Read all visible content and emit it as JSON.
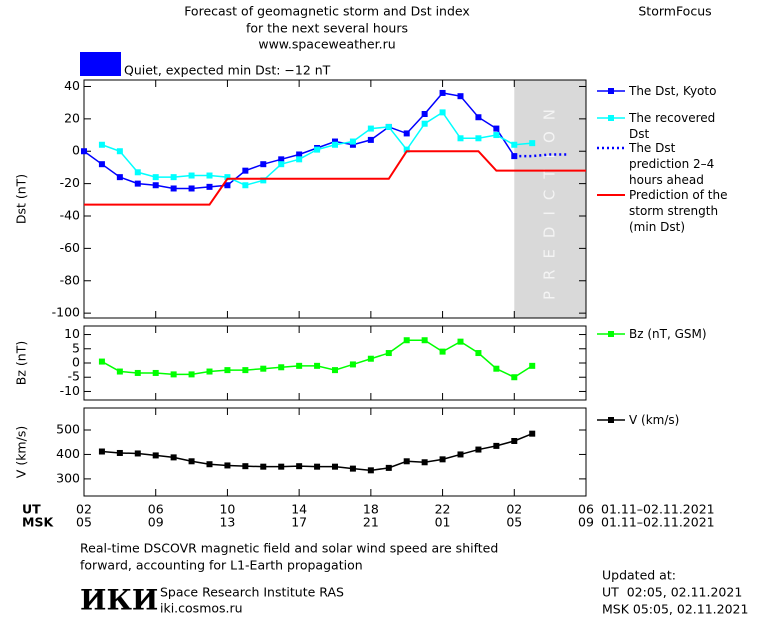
{
  "header": {
    "title": [
      "Forecast of geomagnetic storm and Dst index",
      "for the next several hours",
      "www.spaceweather.ru"
    ],
    "brand": "StormFocus",
    "status": "Quiet, expected min Dst: −12 nT",
    "status_color": "#0000ff"
  },
  "chart_data": [
    {
      "type": "line",
      "ylabel": "Dst (nT)",
      "xlim": [
        0,
        28
      ],
      "ylim": [
        -103,
        44
      ],
      "yticks": [
        40,
        20,
        0,
        -20,
        -40,
        -60,
        -80,
        -100
      ],
      "shaded_region": {
        "x": [
          24,
          28
        ],
        "label": "PREDICTION",
        "color": "#d9d9d9"
      },
      "series": [
        {
          "name": "The Dst, Kyoto",
          "color": "#0000ff",
          "marker": true,
          "x": [
            0,
            1,
            2,
            3,
            4,
            5,
            6,
            7,
            8,
            9,
            10,
            11,
            12,
            13,
            14,
            15,
            16,
            17,
            18,
            19,
            20,
            21,
            22,
            23,
            24
          ],
          "values": [
            0,
            -8,
            -16,
            -20,
            -21,
            -23,
            -23,
            -22,
            -21,
            -12,
            -8,
            -5,
            -2,
            2,
            6,
            4,
            7,
            15,
            11,
            23,
            36,
            34,
            21,
            14,
            -3
          ]
        },
        {
          "name": "The recovered Dst",
          "color": "#00ffff",
          "marker": true,
          "x": [
            1,
            2,
            3,
            4,
            5,
            6,
            7,
            8,
            9,
            10,
            11,
            12,
            13,
            14,
            15,
            16,
            17,
            18,
            19,
            20,
            21,
            22,
            23,
            24,
            25
          ],
          "values": [
            4,
            0,
            -13,
            -16,
            -16,
            -15,
            -15,
            -16,
            -21,
            -18,
            -8,
            -5,
            1,
            4,
            6,
            14,
            15,
            1,
            17,
            24,
            8,
            8,
            10,
            4,
            5
          ]
        },
        {
          "name": "The Dst prediction 2–4 hours ahead",
          "color": "#0000ff",
          "dash": "dotted",
          "marker": false,
          "x": [
            24,
            25,
            26,
            27
          ],
          "values": [
            -3,
            -3,
            -2,
            -2
          ]
        },
        {
          "name": "Prediction of the storm strength (min Dst)",
          "color": "#ff0000",
          "marker": false,
          "x": [
            0,
            7,
            8,
            17,
            18,
            22,
            23,
            28
          ],
          "values": [
            -33,
            -33,
            -17,
            -17,
            0,
            0,
            -12,
            -12
          ]
        }
      ]
    },
    {
      "type": "line",
      "ylabel": "Bz (nT)",
      "xlim": [
        0,
        28
      ],
      "ylim": [
        -13,
        13
      ],
      "yticks": [
        10,
        5,
        0,
        -5,
        -10
      ],
      "series": [
        {
          "name": "Bz (nT, GSM)",
          "color": "#00ff00",
          "marker": true,
          "x": [
            1,
            2,
            3,
            4,
            5,
            6,
            7,
            8,
            9,
            10,
            11,
            12,
            13,
            14,
            15,
            16,
            17,
            18,
            19,
            20,
            21,
            22,
            23,
            24,
            25
          ],
          "values": [
            0.5,
            -3,
            -3.5,
            -3.5,
            -4,
            -4,
            -3,
            -2.5,
            -2.5,
            -2,
            -1.5,
            -1,
            -1,
            -2.5,
            -0.5,
            1.5,
            3.5,
            8,
            8,
            4,
            7.5,
            3.5,
            -2,
            -5,
            -1
          ]
        }
      ]
    },
    {
      "type": "line",
      "ylabel": "V (km/s)",
      "xlim": [
        0,
        28
      ],
      "ylim": [
        230,
        590
      ],
      "yticks": [
        500,
        400,
        300
      ],
      "series": [
        {
          "name": "V (km/s)",
          "color": "#000000",
          "marker": true,
          "x": [
            1,
            2,
            3,
            4,
            5,
            6,
            7,
            8,
            9,
            10,
            11,
            12,
            13,
            14,
            15,
            16,
            17,
            18,
            19,
            20,
            21,
            22,
            23,
            24,
            25
          ],
          "values": [
            412,
            406,
            404,
            396,
            388,
            372,
            360,
            355,
            352,
            350,
            350,
            352,
            350,
            350,
            342,
            335,
            345,
            372,
            368,
            380,
            400,
            420,
            435,
            455,
            485
          ]
        }
      ],
      "xlabel": "UT",
      "xticks": [
        {
          "value": 0,
          "label": "02"
        },
        {
          "value": 4,
          "label": "06"
        },
        {
          "value": 8,
          "label": "10"
        },
        {
          "value": 12,
          "label": "14"
        },
        {
          "value": 16,
          "label": "18"
        },
        {
          "value": 20,
          "label": "22"
        },
        {
          "value": 24,
          "label": "02"
        },
        {
          "value": 28,
          "label": "06"
        }
      ],
      "date_range": "01.11–02.11.2021",
      "xlabel2": "MSK",
      "xticks2": [
        {
          "value": 0,
          "label": "05"
        },
        {
          "value": 4,
          "label": "09"
        },
        {
          "value": 8,
          "label": "13"
        },
        {
          "value": 12,
          "label": "17"
        },
        {
          "value": 16,
          "label": "21"
        },
        {
          "value": 20,
          "label": "01"
        },
        {
          "value": 24,
          "label": "05"
        },
        {
          "value": 28,
          "label": "09"
        }
      ],
      "date_range2": "01.11–02.11.2021"
    }
  ],
  "footer": {
    "note": [
      "Real-time DSCOVR magnetic field and solar wind speed are shifted",
      "forward, accounting for L1-Earth propagation"
    ],
    "logo": "ИКИ",
    "institute": "Space Research Institute RAS",
    "site": "iki.cosmos.ru",
    "updated": [
      "Updated at:",
      "UT  02:05, 02.11.2021",
      "MSK 05:05, 02.11.2021"
    ]
  }
}
